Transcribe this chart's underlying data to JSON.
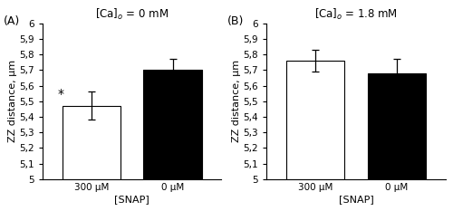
{
  "panel_A": {
    "label": "(A)",
    "title_ca": "[Ca]$_o$ = 0 mM",
    "bars": [
      {
        "x_label": "300 μM",
        "value": 5.47,
        "err": 0.09,
        "color": "white",
        "edgecolor": "black",
        "sig": true
      },
      {
        "x_label": "0 μM",
        "value": 5.7,
        "err": 0.07,
        "color": "black",
        "edgecolor": "black",
        "sig": false
      }
    ],
    "xlabel": "[SNAP]",
    "ylabel": "ZZ distance, μm",
    "ylim": [
      5.0,
      6.0
    ],
    "yticks": [
      5.0,
      5.1,
      5.2,
      5.3,
      5.4,
      5.5,
      5.6,
      5.7,
      5.8,
      5.9,
      6.0
    ]
  },
  "panel_B": {
    "label": "(B)",
    "title_ca": "[Ca]$_o$ = 1.8 mM",
    "bars": [
      {
        "x_label": "300 μM",
        "value": 5.76,
        "err": 0.07,
        "color": "white",
        "edgecolor": "black",
        "sig": false
      },
      {
        "x_label": "0 μM",
        "value": 5.68,
        "err": 0.09,
        "color": "black",
        "edgecolor": "black",
        "sig": false
      }
    ],
    "xlabel": "[SNAP]",
    "ylabel": "ZZ distance, μm",
    "ylim": [
      5.0,
      6.0
    ],
    "yticks": [
      5.0,
      5.1,
      5.2,
      5.3,
      5.4,
      5.5,
      5.6,
      5.7,
      5.8,
      5.9,
      6.0
    ]
  }
}
